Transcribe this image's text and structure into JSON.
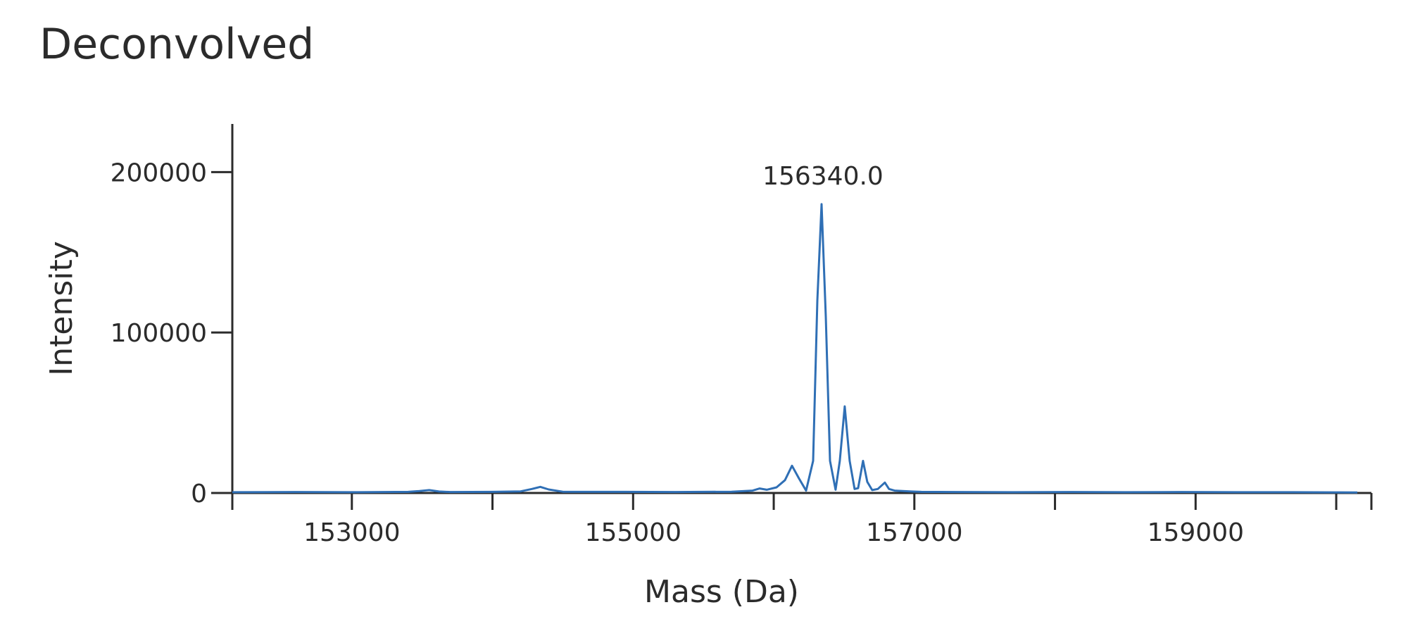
{
  "chart_data": {
    "type": "line",
    "title": "Deconvolved",
    "xlabel": "Mass (Da)",
    "ylabel": "Intensity",
    "xlim": [
      152150,
      160250
    ],
    "ylim": [
      0,
      230000
    ],
    "x_ticks": [
      153000,
      155000,
      157000,
      159000
    ],
    "x_tick_labels": [
      "153000",
      "155000",
      "157000",
      "159000"
    ],
    "x_minor_ticks": [
      154000,
      156000,
      158000,
      160000
    ],
    "y_ticks": [
      0,
      100000,
      200000
    ],
    "y_tick_labels": [
      "0",
      "100000",
      "200000"
    ],
    "grid": false,
    "legend": "none",
    "color": "#2f6fb5",
    "annotations": [
      {
        "text": "156340.0",
        "x": 156340,
        "y": 180000
      }
    ],
    "series": [
      {
        "x": [
          152150,
          152600,
          153000,
          153400,
          153480,
          153550,
          153620,
          153700,
          154000,
          154200,
          154280,
          154340,
          154400,
          154500,
          154900,
          155300,
          155700,
          155850,
          155900,
          155950,
          156020,
          156080,
          156130,
          156180,
          156230,
          156280,
          156310,
          156340,
          156370,
          156400,
          156440,
          156470,
          156505,
          156540,
          156575,
          156600,
          156635,
          156665,
          156700,
          156740,
          156790,
          156820,
          156860,
          156920,
          156980,
          157050,
          157300,
          157700,
          158100,
          158500,
          158900,
          159300,
          159700,
          160000,
          160150
        ],
        "y": [
          500,
          600,
          500,
          700,
          1200,
          1800,
          900,
          600,
          700,
          1000,
          2500,
          3800,
          2200,
          800,
          700,
          600,
          800,
          1500,
          2800,
          2000,
          3500,
          8000,
          17000,
          9000,
          1500,
          20000,
          120000,
          180000,
          110000,
          20000,
          2000,
          20000,
          54000,
          20000,
          2500,
          3000,
          20000,
          7000,
          1800,
          2500,
          6500,
          2500,
          1500,
          1200,
          900,
          700,
          600,
          500,
          600,
          500,
          600,
          500,
          500,
          400,
          300
        ]
      }
    ]
  }
}
